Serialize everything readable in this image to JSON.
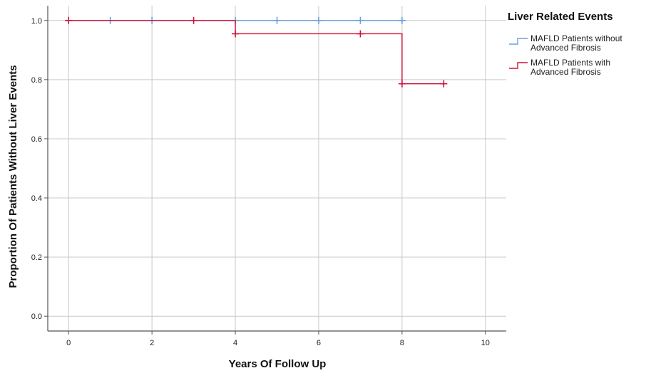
{
  "chart_data": {
    "type": "line",
    "subtype": "kaplan-meier-step",
    "title": "",
    "xlabel": "Years Of Follow Up",
    "ylabel": "Proportion Of Patients Without Liver Events",
    "xlim": [
      -0.5,
      10.5
    ],
    "ylim": [
      -0.05,
      1.05
    ],
    "xticks": [
      0,
      2,
      4,
      6,
      8,
      10
    ],
    "yticks": [
      0.0,
      0.2,
      0.4,
      0.6,
      0.8,
      1.0
    ],
    "xtick_labels": [
      "0",
      "2",
      "4",
      "6",
      "8",
      "10"
    ],
    "ytick_labels": [
      "0.0",
      "0.2",
      "0.4",
      "0.6",
      "0.8",
      "1.0"
    ],
    "grid": true,
    "legend": {
      "title": "Liver Related Events",
      "placement": "right",
      "entries": [
        {
          "lines": [
            "MAFLD Patients without",
            "Advanced Fibrosis"
          ]
        },
        {
          "lines": [
            "MAFLD Patients with",
            "Advanced Fibrosis"
          ]
        }
      ]
    },
    "series": [
      {
        "name": "MAFLD Patients without Advanced Fibrosis",
        "color": "#6a9fd8",
        "steps": [
          {
            "x": 0,
            "y": 1.0
          },
          {
            "x": 8,
            "y": 1.0
          }
        ],
        "censored": [
          {
            "x": 1,
            "y": 1.0
          },
          {
            "x": 2,
            "y": 1.0
          },
          {
            "x": 4,
            "y": 1.0
          },
          {
            "x": 5,
            "y": 1.0
          },
          {
            "x": 6,
            "y": 1.0
          },
          {
            "x": 7,
            "y": 1.0
          },
          {
            "x": 8,
            "y": 1.0
          }
        ]
      },
      {
        "name": "MAFLD Patients with Advanced Fibrosis",
        "color": "#d0103a",
        "steps": [
          {
            "x": 0,
            "y": 1.0
          },
          {
            "x": 4,
            "y": 0.955
          },
          {
            "x": 8,
            "y": 0.786
          },
          {
            "x": 9,
            "y": 0.786
          }
        ],
        "censored": [
          {
            "x": 0,
            "y": 1.0
          },
          {
            "x": 3,
            "y": 1.0
          },
          {
            "x": 4,
            "y": 0.955
          },
          {
            "x": 7,
            "y": 0.955
          },
          {
            "x": 8,
            "y": 0.786
          },
          {
            "x": 9,
            "y": 0.786
          }
        ]
      }
    ]
  }
}
